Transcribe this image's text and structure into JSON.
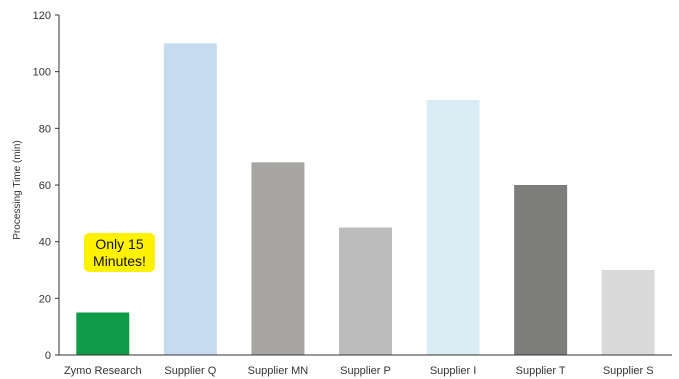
{
  "chart_data": {
    "type": "bar",
    "title": "",
    "xlabel": "",
    "ylabel": "Processing Time (min)",
    "ylim": [
      0,
      120
    ],
    "yticks": [
      0,
      20,
      40,
      60,
      80,
      100,
      120
    ],
    "grid": false,
    "legend": "none",
    "categories": [
      "Zymo Research",
      "Supplier Q",
      "Supplier MN",
      "Supplier P",
      "Supplier I",
      "Supplier T",
      "Supplier S"
    ],
    "values": [
      15,
      110,
      68,
      45,
      90,
      60,
      30
    ],
    "bar_colors": [
      "#0f9b48",
      "#c6dbf0",
      "#a6a5a2",
      "#bcbcbc",
      "#daedf5",
      "#7d7e7c",
      "#d9d9d9"
    ],
    "annotation": "Only 15\nMinutes!",
    "annotation_color": "#fff200"
  }
}
